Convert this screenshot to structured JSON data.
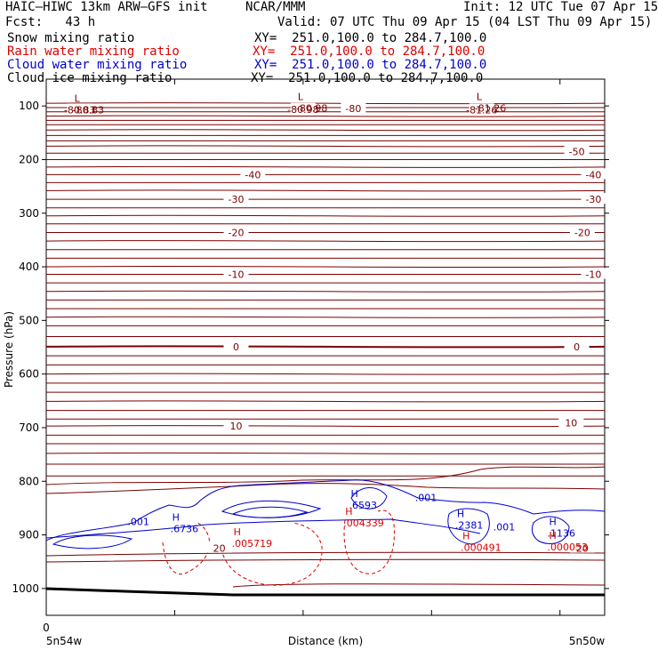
{
  "header": {
    "model": "HAIC–HIWC 13km ARW–GFS init",
    "org": "NCAR/MMM",
    "init": "Init: 12 UTC Tue 07 Apr 15",
    "fcst": "Fcst:   43 h",
    "valid": "Valid: 07 UTC Thu 09 Apr 15 (04 LST Thu 09 Apr 15)"
  },
  "legend": [
    {
      "name": "Snow mixing ratio",
      "xy": "XY=  251.0,100.0 to 284.7,100.0",
      "color": "#000000"
    },
    {
      "name": "Rain water mixing ratio",
      "xy": "XY=  251.0,100.0 to 284.7,100.0",
      "color": "#dd0000"
    },
    {
      "name": "Cloud water mixing ratio",
      "xy": "XY=  251.0,100.0 to 284.7,100.0",
      "color": "#0000cc"
    },
    {
      "name": "Cloud ice mixing ratio",
      "xy": "XY=  251.0,100.0 to 284.7,100.0",
      "color": "#000000"
    }
  ],
  "colors": {
    "temperature": "#7a0000",
    "rain": "#dd0000",
    "cloud_water": "#0000cc",
    "ground": "#000000"
  },
  "chart_data": {
    "type": "line",
    "ylabel": "Pressure (hPa)",
    "xlabel": "Distance (km)",
    "x_left_label": "5n54w",
    "x_right_label": "5n50w",
    "x_zero_label": "0",
    "y_ticks": [
      100,
      200,
      300,
      400,
      500,
      600,
      700,
      800,
      900,
      1000
    ],
    "ylim": [
      50,
      1050
    ],
    "y_scale": "linear",
    "temperature_labels": [
      {
        "text": "-80.83",
        "x": 0.06,
        "p": 107
      },
      {
        "text": "-80.98",
        "x": 0.46,
        "p": 106
      },
      {
        "text": "-80",
        "x": 0.55,
        "p": 105
      },
      {
        "text": "-81.26",
        "x": 0.78,
        "p": 107
      },
      {
        "text": "-50",
        "x": 0.95,
        "p": 185
      },
      {
        "text": "-40",
        "x": 0.37,
        "p": 228
      },
      {
        "text": "-40",
        "x": 0.98,
        "p": 228
      },
      {
        "text": "-30",
        "x": 0.34,
        "p": 274
      },
      {
        "text": "-30",
        "x": 0.98,
        "p": 274
      },
      {
        "text": "-20",
        "x": 0.34,
        "p": 336
      },
      {
        "text": "-20",
        "x": 0.96,
        "p": 336
      },
      {
        "text": "-10",
        "x": 0.34,
        "p": 414
      },
      {
        "text": "-10",
        "x": 0.98,
        "p": 414
      },
      {
        "text": "0",
        "x": 0.34,
        "p": 549
      },
      {
        "text": "0",
        "x": 0.95,
        "p": 549
      },
      {
        "text": "10",
        "x": 0.34,
        "p": 697
      },
      {
        "text": "10",
        "x": 0.94,
        "p": 691
      },
      {
        "text": "20",
        "x": 0.31,
        "p": 925
      },
      {
        "text": "20",
        "x": 0.96,
        "p": 925
      }
    ],
    "extrema": [
      {
        "symbol": "L",
        "value": "-80.83",
        "x": 0.06,
        "p": 99,
        "color": "#7a0000"
      },
      {
        "symbol": "L",
        "value": "-80.98",
        "x": 0.46,
        "p": 96,
        "color": "#7a0000"
      },
      {
        "symbol": "L",
        "value": "-81.26",
        "x": 0.78,
        "p": 96,
        "color": "#7a0000"
      },
      {
        "symbol": "H",
        "value": ".6736",
        "x": 0.235,
        "p": 880,
        "color": "#0000cc"
      },
      {
        "symbol": "H",
        "value": ".6593",
        "x": 0.555,
        "p": 836,
        "color": "#0000cc"
      },
      {
        "symbol": "H",
        "value": ".2381",
        "x": 0.745,
        "p": 873,
        "color": "#0000cc"
      },
      {
        "symbol": "H",
        "value": ".1136",
        "x": 0.91,
        "p": 888,
        "color": "#0000cc"
      },
      {
        "symbol": "H",
        "value": ".005719",
        "x": 0.345,
        "p": 907,
        "color": "#dd0000"
      },
      {
        "symbol": "H",
        "value": ".004339",
        "x": 0.545,
        "p": 869,
        "color": "#dd0000"
      },
      {
        "symbol": "H",
        "value": ".000491",
        "x": 0.755,
        "p": 915,
        "color": "#dd0000"
      },
      {
        "symbol": "H",
        "value": ".000053",
        "x": 0.91,
        "p": 914,
        "color": "#dd0000"
      }
    ],
    "cloud_labels": [
      {
        "text": ".001",
        "x": 0.165,
        "p": 875
      },
      {
        "text": ".001",
        "x": 0.68,
        "p": 830
      },
      {
        "text": ".001",
        "x": 0.82,
        "p": 885
      }
    ]
  }
}
